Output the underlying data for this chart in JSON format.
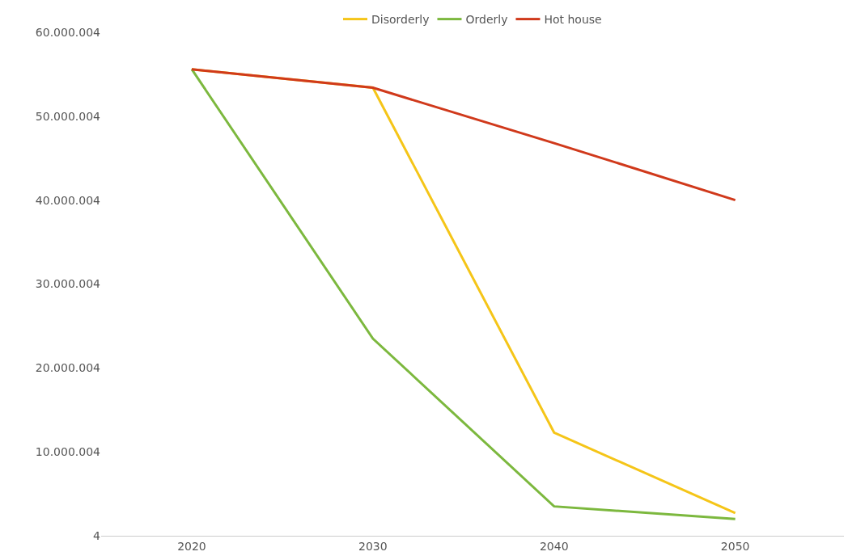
{
  "chart_data": {
    "type": "line",
    "categories": [
      "2020",
      "2030",
      "2040",
      "2050"
    ],
    "series": [
      {
        "name": "Disorderly",
        "color": "#f5c518",
        "values": [
          55600000,
          53400000,
          12300000,
          2700000
        ]
      },
      {
        "name": "Orderly",
        "color": "#7cb83e",
        "values": [
          55600000,
          23500000,
          3500000,
          2000000
        ]
      },
      {
        "name": "Hot house",
        "color": "#d0391b",
        "values": [
          55600000,
          53400000,
          46800000,
          40000000
        ]
      }
    ],
    "ylim": [
      4,
      60000004
    ],
    "yticks": [
      {
        "value": 4,
        "label": "4"
      },
      {
        "value": 10000004,
        "label": "10.000.004"
      },
      {
        "value": 20000004,
        "label": "20.000.004"
      },
      {
        "value": 30000004,
        "label": "30.000.004"
      },
      {
        "value": 40000004,
        "label": "40.000.004"
      },
      {
        "value": 50000004,
        "label": "50.000.004"
      },
      {
        "value": 60000004,
        "label": "60.000.004"
      }
    ],
    "legend": "top",
    "marker": "none",
    "line_style": "solid"
  }
}
